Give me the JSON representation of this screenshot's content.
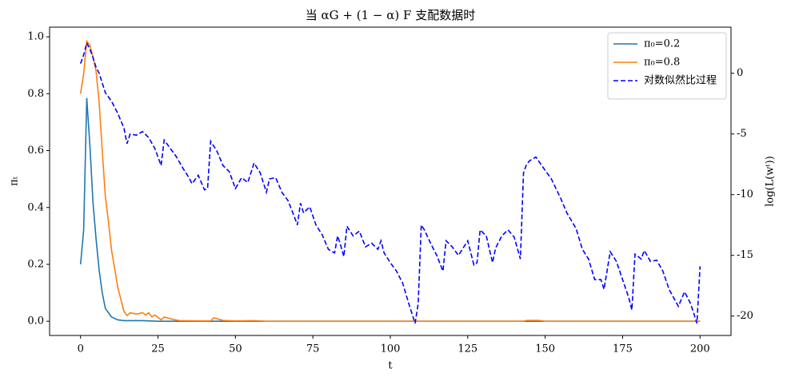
{
  "chart_data": {
    "type": "line",
    "title": "当 αG + (1 − α) F 支配数据时",
    "xlabel": "t",
    "ylabel": "πₜ",
    "y2label": "log(L(wᵗ))",
    "xlim": [
      -10,
      210
    ],
    "xticks": [
      0,
      25,
      50,
      75,
      100,
      125,
      150,
      175,
      200
    ],
    "ylim": [
      -0.05,
      1.034
    ],
    "yticks": [
      {
        "value": 0,
        "label": "0.0"
      },
      {
        "value": 0.2,
        "label": "0.2"
      },
      {
        "value": 0.4,
        "label": "0.4"
      },
      {
        "value": 0.6,
        "label": "0.6"
      },
      {
        "value": 0.8,
        "label": "0.8"
      },
      {
        "value": 1,
        "label": "1.0"
      }
    ],
    "y2lim": [
      -21.6,
      3.8
    ],
    "y2ticks": [
      -20,
      -15,
      -10,
      -5,
      0
    ],
    "legend": "upper right",
    "series": [
      {
        "name": "π₀=0.2",
        "color": "#1f77b4",
        "linestyle": "solid",
        "x": [
          0,
          1,
          2,
          3,
          4,
          5,
          6,
          7,
          8,
          9,
          10,
          12,
          14,
          20,
          25,
          200
        ],
        "values": [
          0.2,
          0.32,
          0.785,
          0.62,
          0.42,
          0.29,
          0.18,
          0.1,
          0.045,
          0.03,
          0.015,
          0.005,
          0.002,
          0.002,
          0,
          0
        ]
      },
      {
        "name": "π₀=0.8",
        "color": "#ff7f0e",
        "linestyle": "solid",
        "x": [
          0,
          1,
          2,
          3,
          4,
          5,
          6,
          7,
          8,
          9,
          10,
          12,
          14,
          15,
          16,
          18,
          20,
          21,
          22,
          23,
          24,
          26,
          27,
          30,
          32,
          40,
          42,
          43,
          46,
          50,
          56,
          60,
          143,
          144,
          148,
          150,
          200
        ],
        "values": [
          0.8,
          0.87,
          0.985,
          0.97,
          0.93,
          0.88,
          0.77,
          0.6,
          0.44,
          0.35,
          0.25,
          0.12,
          0.035,
          0.02,
          0.03,
          0.025,
          0.03,
          0.022,
          0.03,
          0.015,
          0.022,
          0.005,
          0.015,
          0.006,
          0.002,
          0.001,
          0.001,
          0.012,
          0.003,
          0.001,
          0.002,
          0,
          0,
          0.003,
          0.003,
          0,
          0
        ]
      },
      {
        "name": "对数似然比过程",
        "color": "#0000ff",
        "linestyle": "dashed",
        "axis": "y2",
        "x": [
          0,
          1,
          2,
          3,
          4,
          5,
          6,
          7,
          8,
          10,
          12,
          14,
          15,
          16,
          18,
          20,
          22,
          24,
          26,
          27,
          29,
          31,
          33,
          35,
          36,
          38,
          40,
          41,
          42,
          44,
          46,
          48,
          50,
          52,
          54,
          56,
          58,
          60,
          61,
          63,
          65,
          67,
          69,
          70,
          71,
          72,
          74,
          76,
          78,
          80,
          82,
          83,
          84,
          85,
          86,
          88,
          90,
          92,
          94,
          96,
          97,
          98,
          100,
          102,
          104,
          106,
          108,
          109,
          110,
          111,
          113,
          115,
          117,
          118,
          120,
          122,
          125,
          127,
          128,
          129,
          131,
          133,
          134,
          136,
          138,
          140,
          142,
          143,
          144,
          145,
          147,
          150,
          152,
          155,
          157,
          160,
          162,
          164,
          166,
          168,
          169,
          171,
          173,
          175,
          177,
          178,
          179,
          181,
          182,
          184,
          186,
          188,
          190,
          193,
          195,
          197,
          199,
          200
        ],
        "values": [
          0.8,
          1.5,
          2.5,
          2.0,
          1.3,
          0.5,
          0,
          -0.8,
          -1.6,
          -2.3,
          -3.3,
          -4.5,
          -5.8,
          -5.0,
          -5.1,
          -4.8,
          -5.3,
          -6.2,
          -7.6,
          -5.5,
          -6.2,
          -6.9,
          -7.8,
          -8.6,
          -9.1,
          -8.4,
          -9.6,
          -9.5,
          -5.6,
          -6.4,
          -7.6,
          -8.1,
          -9.5,
          -8.6,
          -9.0,
          -7.4,
          -8.2,
          -9.8,
          -8.7,
          -8.6,
          -9.8,
          -10.5,
          -11.8,
          -12.5,
          -10.7,
          -11.5,
          -11.0,
          -12.5,
          -13.3,
          -14.5,
          -14.8,
          -13.4,
          -14.2,
          -15.1,
          -12.6,
          -13.4,
          -13.0,
          -14.3,
          -14.0,
          -14.5,
          -13.8,
          -14.8,
          -15.6,
          -16.3,
          -17.3,
          -19.0,
          -20.6,
          -19.0,
          -12.5,
          -12.9,
          -14.0,
          -15.0,
          -16.3,
          -13.8,
          -14.3,
          -15.0,
          -13.8,
          -15.8,
          -15.6,
          -12.9,
          -13.4,
          -15.6,
          -14.4,
          -13.4,
          -12.9,
          -13.5,
          -15.3,
          -8.2,
          -7.5,
          -7.2,
          -6.9,
          -8.0,
          -8.7,
          -10.3,
          -11.5,
          -12.8,
          -14.5,
          -15.3,
          -17.0,
          -17.0,
          -17.8,
          -14.7,
          -15.5,
          -17.0,
          -18.5,
          -19.5,
          -14.9,
          -15.3,
          -14.6,
          -15.5,
          -15.4,
          -16.3,
          -17.8,
          -19.2,
          -18.0,
          -19.0,
          -20.6,
          -15.9
        ]
      }
    ]
  }
}
